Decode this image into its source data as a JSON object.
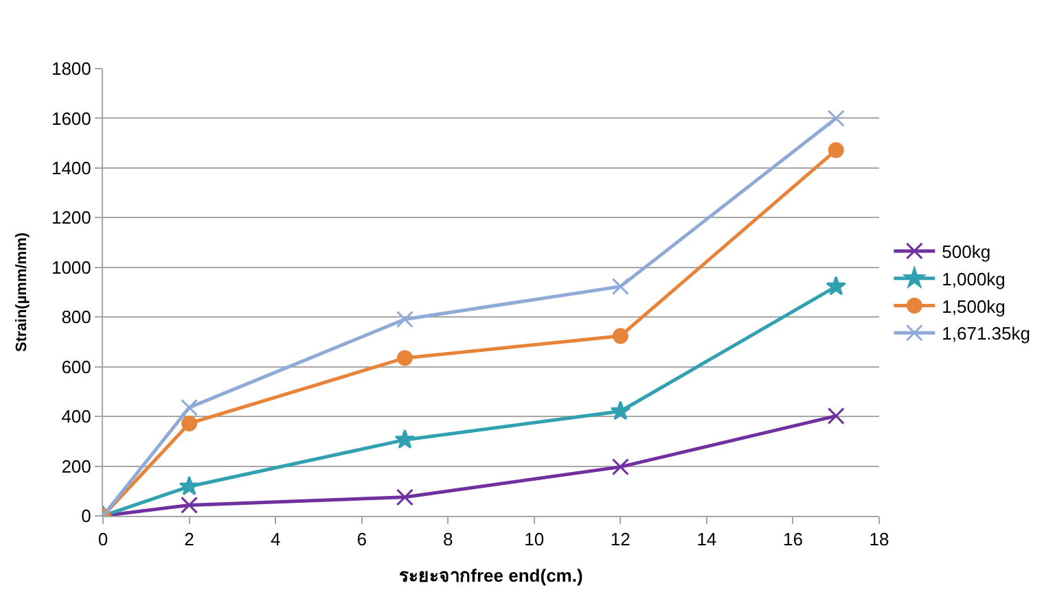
{
  "chart_data": {
    "type": "line",
    "xlabel": "ระยะจากfree end(cm.)",
    "ylabel": "Strain(µmm/mm)",
    "x": [
      0,
      2,
      7,
      12,
      17
    ],
    "series": [
      {
        "name": "500kg",
        "color": "#7030a0",
        "values": [
          0,
          43,
          75,
          197,
          402
        ],
        "marker": "cross"
      },
      {
        "name": "1,000kg",
        "color": "#31a0b0",
        "values": [
          0,
          118,
          306,
          421,
          923
        ],
        "marker": "star"
      },
      {
        "name": "1,500kg",
        "color": "#e8843a",
        "values": [
          0,
          372,
          635,
          724,
          1472
        ],
        "marker": "circle"
      },
      {
        "name": "1,671.35kg",
        "color": "#8faad6",
        "values": [
          0,
          436,
          791,
          923,
          1600
        ],
        "marker": "cross"
      }
    ],
    "xlim": [
      0,
      18
    ],
    "xticks": [
      0,
      2,
      4,
      6,
      8,
      10,
      12,
      14,
      16,
      18
    ],
    "ylim": [
      0,
      1800
    ],
    "yticks": [
      0,
      200,
      400,
      600,
      800,
      1000,
      1200,
      1400,
      1600,
      1800
    ],
    "grid": "y",
    "legend": "right"
  }
}
